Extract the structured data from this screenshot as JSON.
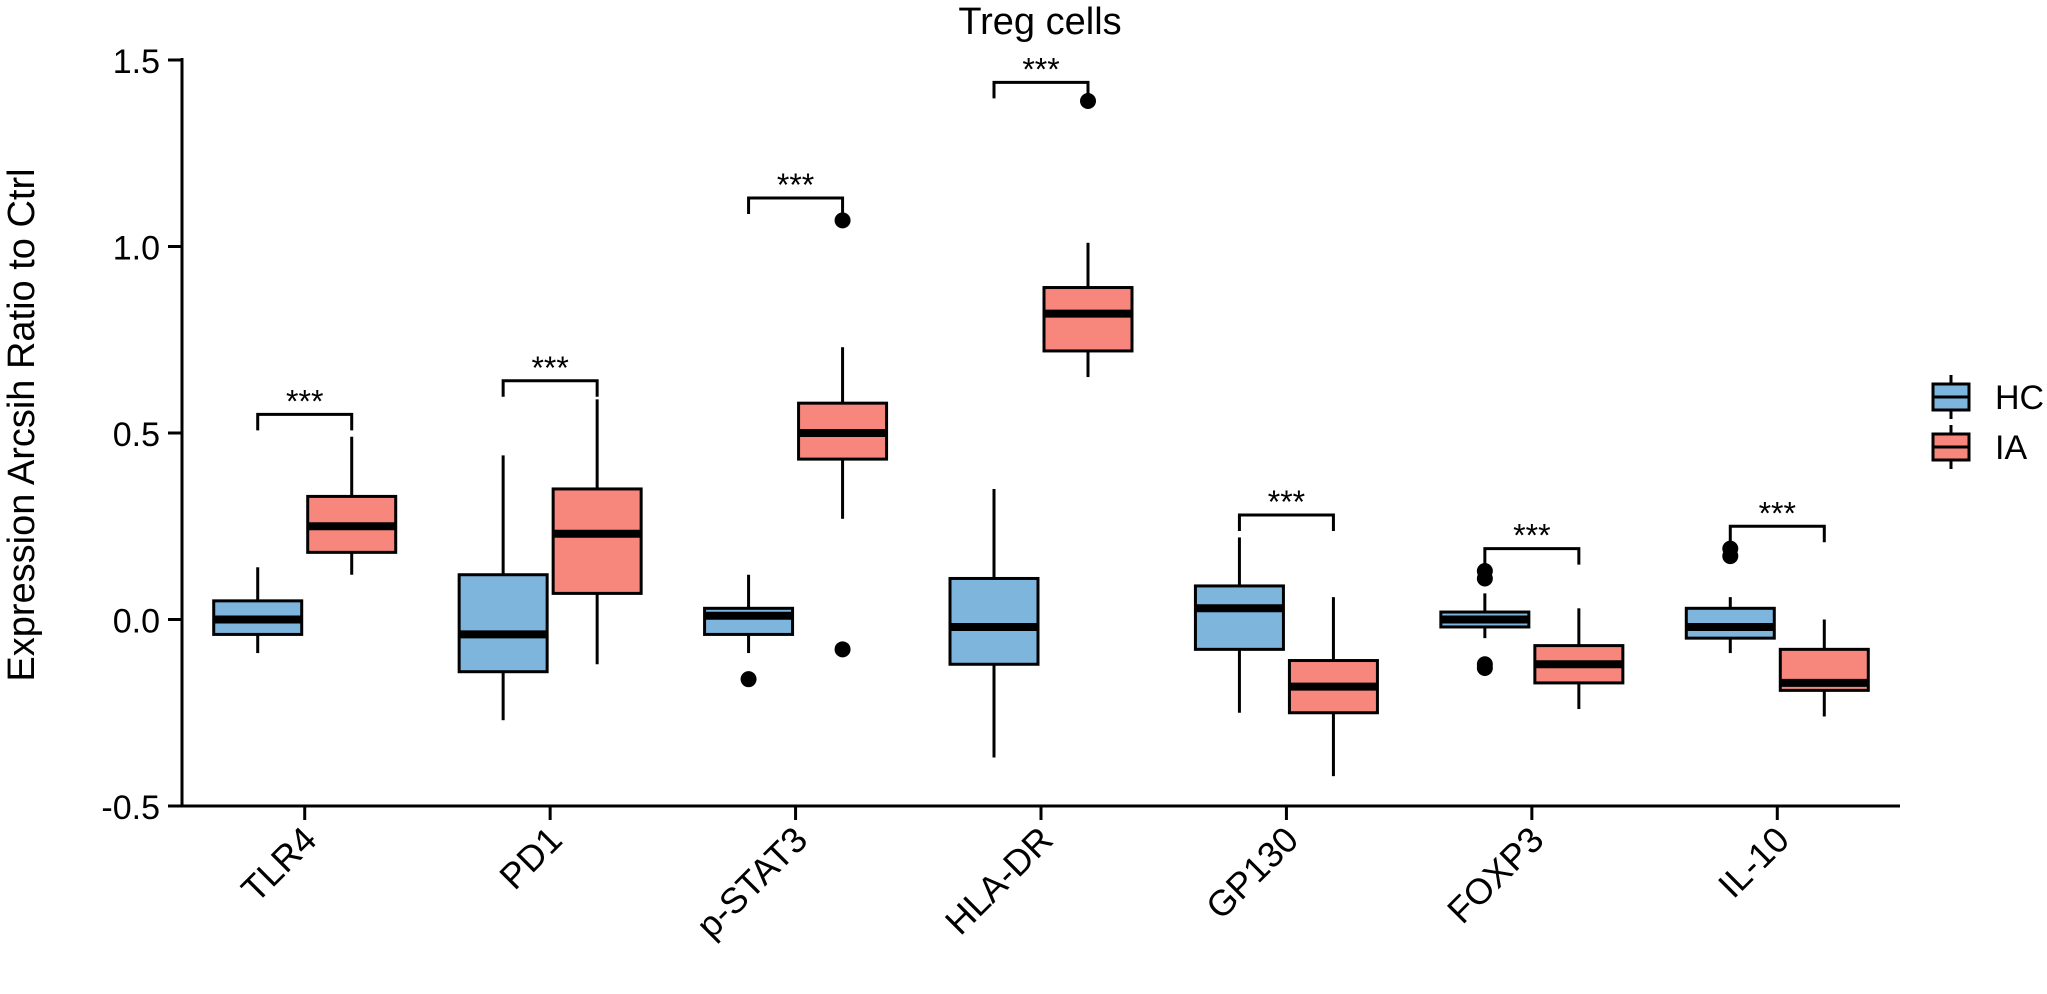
{
  "chart_data": {
    "type": "box",
    "title": "Treg cells",
    "xlabel": "",
    "ylabel": "Expression Arcsih Ratio to Ctrl",
    "ylim": [
      -0.5,
      1.5
    ],
    "yticks": [
      -0.5,
      0.0,
      0.5,
      1.0,
      1.5
    ],
    "ytick_labels": [
      "-0.5",
      "0.0",
      "0.5",
      "1.0",
      "1.5"
    ],
    "grid": false,
    "legend_position": "right",
    "categories": [
      "TLR4",
      "PD1",
      "p-STAT3",
      "HLA-DR",
      "GP130",
      "FOXP3",
      "IL-10"
    ],
    "series": [
      {
        "name": "HC",
        "color": "#7db5dd",
        "boxes": [
          {
            "whisker_low": -0.09,
            "q1": -0.04,
            "median": 0.0,
            "q3": 0.05,
            "whisker_high": 0.14,
            "outliers": []
          },
          {
            "whisker_low": -0.27,
            "q1": -0.14,
            "median": -0.04,
            "q3": 0.12,
            "whisker_high": 0.44,
            "outliers": []
          },
          {
            "whisker_low": -0.09,
            "q1": -0.04,
            "median": 0.01,
            "q3": 0.03,
            "whisker_high": 0.12,
            "outliers": [
              -0.16
            ]
          },
          {
            "whisker_low": -0.37,
            "q1": -0.12,
            "median": -0.02,
            "q3": 0.11,
            "whisker_high": 0.35,
            "outliers": []
          },
          {
            "whisker_low": -0.25,
            "q1": -0.08,
            "median": 0.03,
            "q3": 0.09,
            "whisker_high": 0.22,
            "outliers": []
          },
          {
            "whisker_low": -0.05,
            "q1": -0.02,
            "median": 0.0,
            "q3": 0.02,
            "whisker_high": 0.07,
            "outliers": [
              0.13,
              0.11,
              -0.12,
              -0.13
            ]
          },
          {
            "whisker_low": -0.09,
            "q1": -0.05,
            "median": -0.02,
            "q3": 0.03,
            "whisker_high": 0.06,
            "outliers": [
              0.19,
              0.17
            ]
          }
        ]
      },
      {
        "name": "IA",
        "color": "#f7877c",
        "boxes": [
          {
            "whisker_low": 0.12,
            "q1": 0.18,
            "median": 0.25,
            "q3": 0.33,
            "whisker_high": 0.49,
            "outliers": []
          },
          {
            "whisker_low": -0.12,
            "q1": 0.07,
            "median": 0.23,
            "q3": 0.35,
            "whisker_high": 0.59,
            "outliers": []
          },
          {
            "whisker_low": 0.27,
            "q1": 0.43,
            "median": 0.5,
            "q3": 0.58,
            "whisker_high": 0.73,
            "outliers": [
              1.07,
              -0.08
            ]
          },
          {
            "whisker_low": 0.65,
            "q1": 0.72,
            "median": 0.82,
            "q3": 0.89,
            "whisker_high": 1.01,
            "outliers": [
              1.39
            ]
          },
          {
            "whisker_low": -0.42,
            "q1": -0.25,
            "median": -0.18,
            "q3": -0.11,
            "whisker_high": 0.06,
            "outliers": []
          },
          {
            "whisker_low": -0.24,
            "q1": -0.17,
            "median": -0.12,
            "q3": -0.07,
            "whisker_high": 0.03,
            "outliers": []
          },
          {
            "whisker_low": -0.26,
            "q1": -0.19,
            "median": -0.17,
            "q3": -0.08,
            "whisker_high": 0.0,
            "outliers": []
          }
        ]
      }
    ],
    "significance": [
      {
        "category": "TLR4",
        "label": "***",
        "y": 0.55
      },
      {
        "category": "PD1",
        "label": "***",
        "y": 0.64
      },
      {
        "category": "p-STAT3",
        "label": "***",
        "y": 1.13
      },
      {
        "category": "HLA-DR",
        "label": "***",
        "y": 1.44
      },
      {
        "category": "GP130",
        "label": "***",
        "y": 0.28
      },
      {
        "category": "FOXP3",
        "label": "***",
        "y": 0.19
      },
      {
        "category": "IL-10",
        "label": "***",
        "y": 0.25
      }
    ]
  }
}
